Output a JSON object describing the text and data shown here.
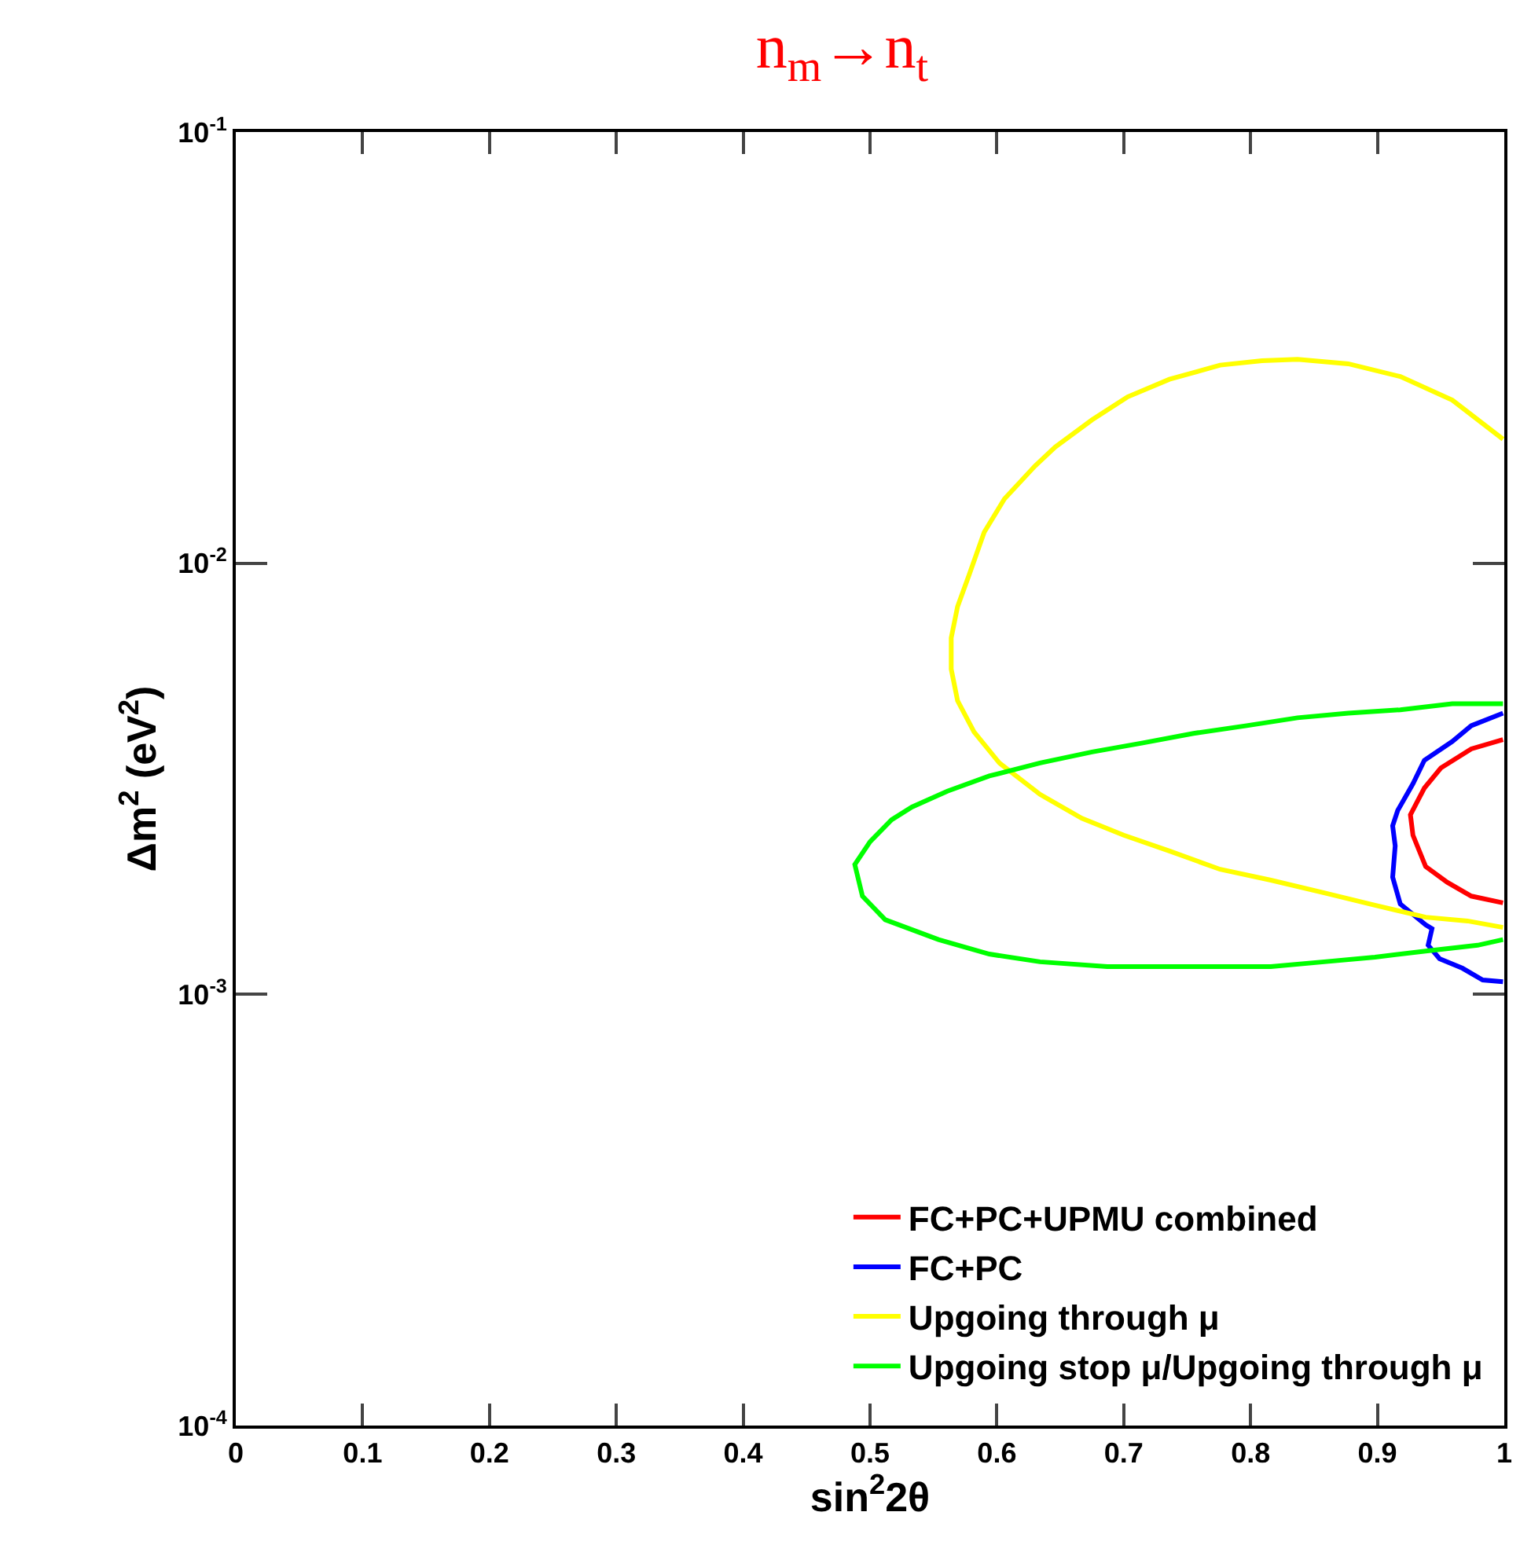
{
  "chart_data": {
    "type": "line",
    "title": "n$_{m}$→n$_{t}$",
    "xlabel": "sin$^{2}$2θ",
    "ylabel": "Δm$^{2}$ (eV$^{2}$)",
    "xlim": [
      0,
      1
    ],
    "xticks": [
      0,
      0.1,
      0.2,
      0.3,
      0.4,
      0.5,
      0.6,
      0.7,
      0.8,
      0.9,
      1
    ],
    "ylim": [
      0.0001,
      0.1
    ],
    "log": "y",
    "yticks": [
      {
        "value": 0.0001,
        "label": "10$^{-4}$"
      },
      {
        "value": 0.001,
        "label": "10$^{-3}$"
      },
      {
        "value": 0.01,
        "label": "10$^{-2}$"
      },
      {
        "value": 0.1,
        "label": "10$^{-1}$"
      }
    ],
    "legend": "bottom right",
    "marker": "none",
    "line_style": "solid",
    "series": [
      {
        "name": "FC+PC+UPMU combined",
        "color": "#ff0000",
        "x": [
          0.999,
          0.974,
          0.95,
          0.937,
          0.926,
          0.928,
          0.938,
          0.955,
          0.974,
          0.999
        ],
        "values": [
          0.0039,
          0.00371,
          0.00335,
          0.00301,
          0.00261,
          0.00234,
          0.00198,
          0.00182,
          0.00169,
          0.00163
        ]
      },
      {
        "name": "FC+PC",
        "color": "#0000ff",
        "x": [
          0.999,
          0.974,
          0.959,
          0.937,
          0.928,
          0.916,
          0.912,
          0.914,
          0.912,
          0.918,
          0.938,
          0.943,
          0.94,
          0.949,
          0.967,
          0.983,
          0.999
        ],
        "values": [
          0.00449,
          0.0042,
          0.00386,
          0.00349,
          0.00308,
          0.00267,
          0.00246,
          0.00221,
          0.00187,
          0.00162,
          0.00145,
          0.00142,
          0.0013,
          0.00121,
          0.00115,
          0.00108,
          0.00107
        ]
      },
      {
        "name": "Upgoing through μ",
        "color": "#ffff00",
        "x": [
          0.999,
          0.959,
          0.918,
          0.877,
          0.837,
          0.809,
          0.776,
          0.736,
          0.703,
          0.675,
          0.646,
          0.63,
          0.606,
          0.59,
          0.578,
          0.569,
          0.564,
          0.564,
          0.569,
          0.582,
          0.602,
          0.634,
          0.667,
          0.7,
          0.736,
          0.776,
          0.816,
          0.858,
          0.898,
          0.938,
          0.971,
          0.999
        ],
        "values": [
          0.0194,
          0.0239,
          0.0271,
          0.029,
          0.0297,
          0.0295,
          0.0288,
          0.0267,
          0.0243,
          0.0215,
          0.0186,
          0.0168,
          0.0141,
          0.0118,
          0.00938,
          0.00793,
          0.00671,
          0.00568,
          0.0048,
          0.00406,
          0.00344,
          0.00291,
          0.00256,
          0.00234,
          0.00215,
          0.00195,
          0.00184,
          0.00172,
          0.00161,
          0.00151,
          0.00148,
          0.00143
        ]
      },
      {
        "name": "Upgoing stop μ/Upgoing through μ",
        "color": "#00ff00",
        "x": [
          0.999,
          0.959,
          0.918,
          0.877,
          0.837,
          0.797,
          0.755,
          0.715,
          0.675,
          0.634,
          0.594,
          0.561,
          0.533,
          0.517,
          0.5,
          0.488,
          0.494,
          0.512,
          0.554,
          0.594,
          0.634,
          0.687,
          0.755,
          0.816,
          0.858,
          0.898,
          0.938,
          0.979,
          0.999
        ],
        "values": [
          0.00472,
          0.00472,
          0.00457,
          0.00449,
          0.00438,
          0.0042,
          0.00403,
          0.00383,
          0.00365,
          0.00344,
          0.00321,
          0.00296,
          0.00272,
          0.00254,
          0.00226,
          0.002,
          0.00169,
          0.00149,
          0.00134,
          0.00124,
          0.00119,
          0.00116,
          0.00116,
          0.00116,
          0.00119,
          0.00122,
          0.00126,
          0.0013,
          0.00134
        ]
      }
    ]
  }
}
